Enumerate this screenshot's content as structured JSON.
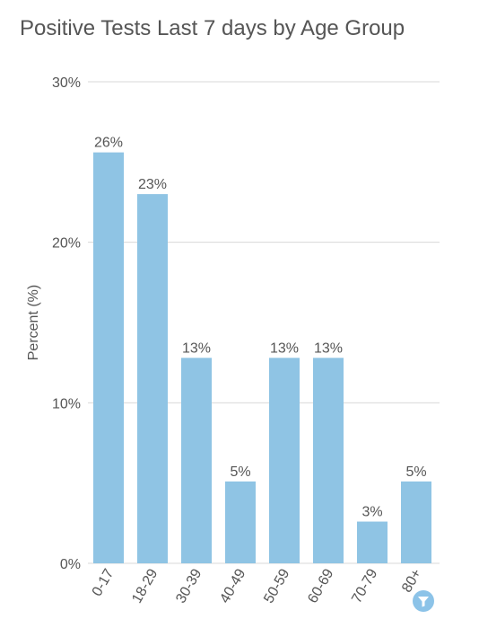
{
  "chart_data": {
    "type": "bar",
    "title": "Positive Tests Last 7 days by Age Group",
    "ylabel": "Percent (%)",
    "xlabel": "",
    "categories": [
      "0-17",
      "18-29",
      "30-39",
      "40-49",
      "50-59",
      "60-69",
      "70-79",
      "80+"
    ],
    "values": [
      25.6,
      23,
      12.8,
      5.1,
      12.8,
      12.8,
      2.6,
      5.1
    ],
    "data_labels": [
      "26%",
      "23%",
      "13%",
      "5%",
      "13%",
      "13%",
      "3%",
      "5%"
    ],
    "yticks": [
      0,
      10,
      20,
      30
    ],
    "ytick_labels": [
      "0%",
      "10%",
      "20%",
      "30%"
    ],
    "ylim": [
      0,
      30
    ],
    "grid": true,
    "legend": "none",
    "bar_color": "#8fc4e4",
    "grid_color": "#d9d9d9",
    "text_color": "#555555"
  },
  "controls": {
    "filter_icon": "funnel-icon",
    "filter_color": "#8cc3e8"
  }
}
